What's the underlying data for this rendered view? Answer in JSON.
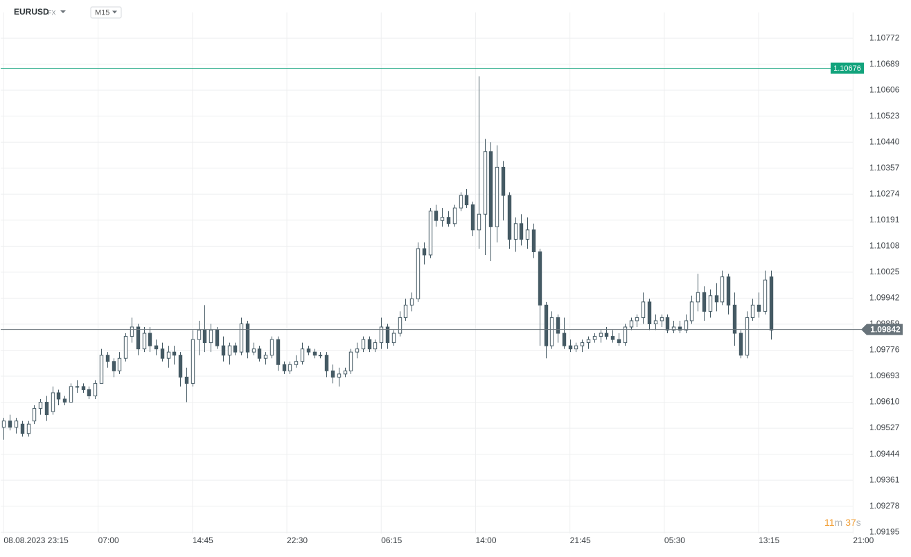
{
  "header": {
    "symbol": "EURUSD",
    "market": "FX",
    "interval": "M15"
  },
  "countdown": {
    "minutes": 11,
    "minutes_unit": "m",
    "seconds": 37,
    "seconds_unit": "s"
  },
  "chart_data": {
    "type": "candlestick",
    "up_color": "#ffffff",
    "down_color": "#455a64",
    "wick_color": "#455a64",
    "grid": true,
    "xlim": [
      -0.5,
      140.6
    ],
    "xticks": [
      {
        "value": 0,
        "label": "08.08.2023 23:15"
      },
      {
        "value": 15.5,
        "label": "07:00"
      },
      {
        "value": 31,
        "label": "14:45"
      },
      {
        "value": 46.5,
        "label": "22:30"
      },
      {
        "value": 62,
        "label": "06:15"
      },
      {
        "value": 77.5,
        "label": "14:00"
      },
      {
        "value": 93,
        "label": "21:45"
      },
      {
        "value": 108.5,
        "label": "05:30"
      },
      {
        "value": 124,
        "label": "13:15"
      },
      {
        "value": 139.5,
        "label": "21:00"
      }
    ],
    "ylim": [
      1.09191,
      1.10854
    ],
    "yticks": [
      1.10772,
      1.10689,
      1.10606,
      1.10523,
      {
        "value": 1.1044,
        "label": "1.10440"
      },
      1.10357,
      1.10274,
      1.10191,
      1.10108,
      1.10025,
      1.09942,
      1.09859,
      1.09776,
      1.09693,
      {
        "value": 1.0961,
        "label": "1.09610"
      },
      1.09527,
      1.09444,
      1.09361,
      1.09278,
      1.09195
    ],
    "ref_line": {
      "value": 1.10676,
      "color": "#12a37c"
    },
    "last_price": {
      "value": 1.09842,
      "color": "#68737a"
    },
    "ohlc": [
      [
        1.0953,
        1.0956,
        1.0949,
        1.0955
      ],
      [
        1.0955,
        1.0957,
        1.0952,
        1.0953
      ],
      [
        1.0953,
        1.0956,
        1.0951,
        1.0955
      ],
      [
        1.0954,
        1.0955,
        1.095,
        1.0951
      ],
      [
        1.0951,
        1.0955,
        1.095,
        1.0954
      ],
      [
        1.0955,
        1.096,
        1.0954,
        1.0959
      ],
      [
        1.0959,
        1.0962,
        1.0957,
        1.0961
      ],
      [
        1.0961,
        1.0963,
        1.0955,
        1.0957
      ],
      [
        1.0958,
        1.0966,
        1.0957,
        1.0964
      ],
      [
        1.0964,
        1.0965,
        1.096,
        1.0962
      ],
      [
        1.0962,
        1.0963,
        1.096,
        1.0961
      ],
      [
        1.0961,
        1.0967,
        1.0961,
        1.0966
      ],
      [
        1.0966,
        1.0968,
        1.0964,
        1.0966
      ],
      [
        1.0966,
        1.0967,
        1.0964,
        1.0965
      ],
      [
        1.0965,
        1.0966,
        1.0962,
        1.0963
      ],
      [
        1.0963,
        1.0968,
        1.0962,
        1.0967
      ],
      [
        1.0967,
        1.0978,
        1.0967,
        1.0976
      ],
      [
        1.0976,
        1.0977,
        1.0972,
        1.0974
      ],
      [
        1.0974,
        1.0975,
        1.0969,
        1.0971
      ],
      [
        1.0971,
        1.0977,
        1.097,
        1.0975
      ],
      [
        1.0975,
        1.0983,
        1.0974,
        1.0982
      ],
      [
        1.0982,
        1.0988,
        1.098,
        1.0985
      ],
      [
        1.0985,
        1.0986,
        1.0976,
        1.0978
      ],
      [
        1.0978,
        1.0985,
        1.0977,
        1.0983
      ],
      [
        1.0983,
        1.0985,
        1.0977,
        1.0979
      ],
      [
        1.0979,
        1.0981,
        1.0976,
        1.0978
      ],
      [
        1.0978,
        1.098,
        1.0974,
        1.0975
      ],
      [
        1.0975,
        1.0979,
        1.0972,
        1.0977
      ],
      [
        1.0977,
        1.0979,
        1.0973,
        1.0976
      ],
      [
        1.0976,
        1.0977,
        1.0966,
        1.0969
      ],
      [
        1.0969,
        1.0972,
        1.0961,
        1.0967
      ],
      [
        1.0967,
        1.0984,
        1.0966,
        1.0981
      ],
      [
        1.0981,
        1.0987,
        1.0976,
        1.0984
      ],
      [
        1.0984,
        1.0992,
        1.0977,
        1.098
      ],
      [
        1.098,
        1.0986,
        1.0977,
        1.0984
      ],
      [
        1.0984,
        1.0985,
        1.0978,
        1.0979
      ],
      [
        1.0979,
        1.0982,
        1.0974,
        1.0976
      ],
      [
        1.0976,
        1.098,
        1.0973,
        1.0979
      ],
      [
        1.0979,
        1.098,
        1.0976,
        1.0977
      ],
      [
        1.0977,
        1.0988,
        1.0976,
        1.0986
      ],
      [
        1.0986,
        1.0987,
        1.0975,
        1.0977
      ],
      [
        1.0977,
        1.098,
        1.0976,
        1.0978
      ],
      [
        1.0978,
        1.0979,
        1.0974,
        1.0975
      ],
      [
        1.0975,
        1.0977,
        1.0973,
        1.0976
      ],
      [
        1.0976,
        1.0982,
        1.0975,
        1.0981
      ],
      [
        1.0981,
        1.0982,
        1.0971,
        1.0973
      ],
      [
        1.0973,
        1.0974,
        1.097,
        1.0971
      ],
      [
        1.0971,
        1.0974,
        1.097,
        1.0973
      ],
      [
        1.0973,
        1.0976,
        1.0972,
        1.0974
      ],
      [
        1.0974,
        1.098,
        1.0973,
        1.0978
      ],
      [
        1.0978,
        1.0979,
        1.0976,
        1.0977
      ],
      [
        1.0977,
        1.0978,
        1.0975,
        1.0976
      ],
      [
        1.0976,
        1.0977,
        1.0975,
        1.0976
      ],
      [
        1.0976,
        1.0977,
        1.0969,
        1.0971
      ],
      [
        1.0971,
        1.0973,
        1.0967,
        1.0969
      ],
      [
        1.0969,
        1.0972,
        1.0966,
        1.097
      ],
      [
        1.097,
        1.0972,
        1.0969,
        1.0971
      ],
      [
        1.0971,
        1.0978,
        1.097,
        1.0977
      ],
      [
        1.0977,
        1.098,
        1.0975,
        1.0978
      ],
      [
        1.0978,
        1.0982,
        1.0977,
        1.0981
      ],
      [
        1.0981,
        1.0982,
        1.0977,
        1.0978
      ],
      [
        1.0978,
        1.0981,
        1.0977,
        1.098
      ],
      [
        1.098,
        1.0988,
        1.0978,
        1.0985
      ],
      [
        1.0985,
        1.0986,
        1.0978,
        1.098
      ],
      [
        1.098,
        1.0984,
        1.0979,
        1.0983
      ],
      [
        1.0983,
        1.099,
        1.0982,
        1.0988
      ],
      [
        1.0988,
        1.0994,
        1.0987,
        1.0992
      ],
      [
        1.0992,
        1.0996,
        1.099,
        1.0994
      ],
      [
        1.0994,
        1.1012,
        1.0993,
        1.101
      ],
      [
        1.101,
        1.1012,
        1.1005,
        1.1008
      ],
      [
        1.1008,
        1.1023,
        1.1007,
        1.1022
      ],
      [
        1.1022,
        1.1024,
        1.1017,
        1.1019
      ],
      [
        1.1019,
        1.1023,
        1.1017,
        1.102
      ],
      [
        1.102,
        1.1022,
        1.1017,
        1.1018
      ],
      [
        1.1018,
        1.1024,
        1.1017,
        1.1023
      ],
      [
        1.1023,
        1.1028,
        1.1022,
        1.1027
      ],
      [
        1.1027,
        1.1029,
        1.1023,
        1.1024
      ],
      [
        1.1024,
        1.1025,
        1.1014,
        1.1016
      ],
      [
        1.1016,
        1.1065,
        1.101,
        1.1021
      ],
      [
        1.1021,
        1.1045,
        1.1008,
        1.1041
      ],
      [
        1.1041,
        1.1044,
        1.1006,
        1.1017
      ],
      [
        1.1017,
        1.1043,
        1.1012,
        1.1036
      ],
      [
        1.1036,
        1.1038,
        1.1019,
        1.1027
      ],
      [
        1.1027,
        1.1028,
        1.101,
        1.1013
      ],
      [
        1.1013,
        1.102,
        1.1009,
        1.1018
      ],
      [
        1.1018,
        1.1021,
        1.1011,
        1.1013
      ],
      [
        1.1013,
        1.102,
        1.101,
        1.1016
      ],
      [
        1.1016,
        1.1018,
        1.1007,
        1.1009
      ],
      [
        1.1009,
        1.101,
        1.0979,
        1.0992
      ],
      [
        1.0992,
        1.0993,
        1.0975,
        1.0979
      ],
      [
        1.0979,
        1.099,
        1.0978,
        1.0988
      ],
      [
        1.0988,
        1.0989,
        1.098,
        1.0983
      ],
      [
        1.0983,
        1.0988,
        1.0978,
        1.0979
      ],
      [
        1.0979,
        1.0981,
        1.0977,
        1.0978
      ],
      [
        1.0978,
        1.098,
        1.0977,
        1.0979
      ],
      [
        1.0979,
        1.0981,
        1.0977,
        1.098
      ],
      [
        1.098,
        1.0982,
        1.0978,
        1.0981
      ],
      [
        1.0981,
        1.0983,
        1.098,
        1.0982
      ],
      [
        1.0982,
        1.0984,
        1.098,
        1.0983
      ],
      [
        1.0983,
        1.0985,
        1.0981,
        1.0982
      ],
      [
        1.0982,
        1.0984,
        1.098,
        1.0981
      ],
      [
        1.0981,
        1.0983,
        1.0979,
        1.098
      ],
      [
        1.098,
        1.0986,
        1.0979,
        1.0985
      ],
      [
        1.0985,
        1.0988,
        1.0984,
        1.0987
      ],
      [
        1.0987,
        1.0989,
        1.0985,
        1.0988
      ],
      [
        1.0988,
        1.0996,
        1.0986,
        1.0993
      ],
      [
        1.0993,
        1.0994,
        1.0984,
        1.0986
      ],
      [
        1.0986,
        1.0989,
        1.0984,
        1.0987
      ],
      [
        1.0987,
        1.0989,
        1.0985,
        1.0988
      ],
      [
        1.0988,
        1.0989,
        1.0983,
        1.0984
      ],
      [
        1.0984,
        1.0987,
        1.0983,
        1.0985
      ],
      [
        1.0985,
        1.0987,
        1.0983,
        1.0984
      ],
      [
        1.0984,
        1.0989,
        1.0983,
        1.0987
      ],
      [
        1.0987,
        1.0995,
        1.0986,
        1.0993
      ],
      [
        1.0993,
        1.1002,
        1.099,
        1.0996
      ],
      [
        1.0996,
        1.0998,
        1.0987,
        1.099
      ],
      [
        1.099,
        1.0997,
        1.0988,
        1.0995
      ],
      [
        1.0995,
        1.0999,
        1.099,
        1.0993
      ],
      [
        1.0993,
        1.1003,
        1.0992,
        1.1001
      ],
      [
        1.1001,
        1.1002,
        1.0989,
        1.0992
      ],
      [
        1.0992,
        1.0996,
        1.0979,
        1.0983
      ],
      [
        1.0983,
        1.0984,
        1.0975,
        1.0976
      ],
      [
        1.0976,
        1.099,
        1.0975,
        1.0988
      ],
      [
        1.0988,
        1.0994,
        1.0987,
        1.0992
      ],
      [
        1.0992,
        1.0996,
        1.0988,
        1.099
      ],
      [
        1.099,
        1.1003,
        1.0989,
        1.1
      ],
      [
        1.1001,
        1.1003,
        1.0981,
        1.0984
      ]
    ]
  }
}
